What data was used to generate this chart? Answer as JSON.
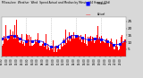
{
  "title_line1": "Milwaukee  Weather  Wind  Speed",
  "title_line2": "Actual and Median",
  "title_line3": "by Minute",
  "title_line4": "(24 Hours) (Old)",
  "legend_actual_label": "Actual",
  "legend_median_label": "Median",
  "legend_actual_color": "#ff0000",
  "legend_median_color": "#0000ff",
  "bar_color": "#ff0000",
  "median_color": "#0000ff",
  "background_color": "#d8d8d8",
  "plot_bg_color": "#ffffff",
  "n_minutes": 1440,
  "ylim": [
    0,
    28
  ],
  "ytick_values": [
    5,
    10,
    15,
    20,
    25
  ],
  "n_vgrid": 5,
  "seed": 42
}
